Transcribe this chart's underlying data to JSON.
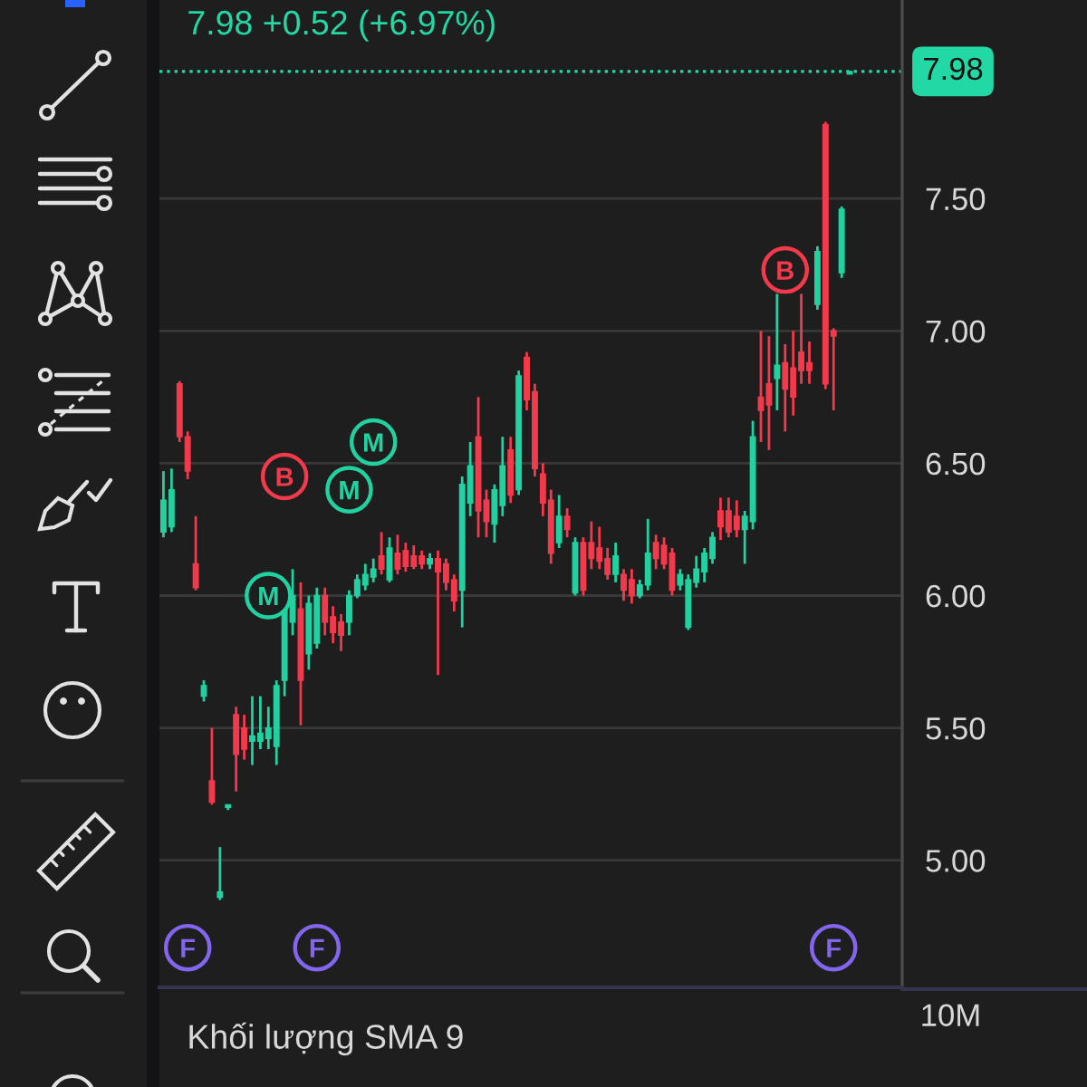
{
  "chart_data": [
    {
      "type": "candlestick",
      "categories": [
        null,
        null,
        null,
        null,
        null,
        null,
        null,
        null,
        null,
        null,
        null,
        null,
        null,
        null,
        null,
        null,
        null,
        null,
        null,
        null,
        null,
        null,
        null,
        null,
        null,
        null,
        null,
        null,
        null,
        null,
        null,
        null,
        null,
        null,
        null,
        null,
        null,
        null,
        null,
        null,
        null,
        null,
        null,
        null,
        null,
        null,
        null,
        null,
        null,
        null,
        null,
        null,
        null,
        null,
        null,
        null,
        null,
        null,
        null,
        null,
        null,
        null,
        null,
        null,
        null,
        null,
        null,
        null,
        null,
        null,
        null,
        null,
        null,
        null,
        null,
        null,
        null,
        null,
        null,
        null,
        null,
        null,
        null,
        null,
        null,
        null,
        null,
        null,
        null,
        null,
        null,
        null
      ],
      "ohlc": [
        [
          6.24,
          6.47,
          6.22,
          6.36
        ],
        [
          6.26,
          6.48,
          6.24,
          6.4
        ],
        [
          6.8,
          6.81,
          6.58,
          6.6
        ],
        [
          6.6,
          6.62,
          6.44,
          6.47
        ],
        [
          6.12,
          6.3,
          6.02,
          6.03
        ],
        [
          5.62,
          5.68,
          5.6,
          5.66
        ],
        [
          5.3,
          5.5,
          5.21,
          5.22
        ],
        [
          4.86,
          5.05,
          4.85,
          4.88
        ],
        [
          5.2,
          5.21,
          5.19,
          5.21
        ],
        [
          5.55,
          5.58,
          5.26,
          5.4
        ],
        [
          5.5,
          5.55,
          5.38,
          5.42
        ],
        [
          5.45,
          5.62,
          5.36,
          5.47
        ],
        [
          5.45,
          5.62,
          5.42,
          5.48
        ],
        [
          5.46,
          5.58,
          5.42,
          5.5
        ],
        [
          5.43,
          5.68,
          5.36,
          5.66
        ],
        [
          5.68,
          6.05,
          5.62,
          5.95
        ],
        [
          5.9,
          6.1,
          5.85,
          6.0
        ],
        [
          5.95,
          6.05,
          5.51,
          5.68
        ],
        [
          5.78,
          6.0,
          5.72,
          5.97
        ],
        [
          5.82,
          6.03,
          5.8,
          6.0
        ],
        [
          6.0,
          6.03,
          5.85,
          5.9
        ],
        [
          5.92,
          5.96,
          5.82,
          5.86
        ],
        [
          5.9,
          5.93,
          5.79,
          5.85
        ],
        [
          5.9,
          6.02,
          5.85,
          6.0
        ],
        [
          6.0,
          6.08,
          5.99,
          6.06
        ],
        [
          6.04,
          6.12,
          6.02,
          6.08
        ],
        [
          6.07,
          6.14,
          6.05,
          6.1
        ],
        [
          6.15,
          6.24,
          6.08,
          6.1
        ],
        [
          6.06,
          6.22,
          6.05,
          6.18
        ],
        [
          6.16,
          6.23,
          6.08,
          6.1
        ],
        [
          6.17,
          6.2,
          6.09,
          6.11
        ],
        [
          6.15,
          6.19,
          6.1,
          6.11
        ],
        [
          6.15,
          6.17,
          6.1,
          6.12
        ],
        [
          6.12,
          6.16,
          6.1,
          6.14
        ],
        [
          6.14,
          6.17,
          5.7,
          6.09
        ],
        [
          6.12,
          6.14,
          6.02,
          6.05
        ],
        [
          6.06,
          6.08,
          5.94,
          5.98
        ],
        [
          6.02,
          6.45,
          5.88,
          6.42
        ],
        [
          6.35,
          6.58,
          6.3,
          6.49
        ],
        [
          6.6,
          6.75,
          6.22,
          6.32
        ],
        [
          6.36,
          6.4,
          6.22,
          6.28
        ],
        [
          6.27,
          6.42,
          6.2,
          6.4
        ],
        [
          6.34,
          6.6,
          6.3,
          6.49
        ],
        [
          6.55,
          6.6,
          6.35,
          6.38
        ],
        [
          6.4,
          6.85,
          6.38,
          6.83
        ],
        [
          6.9,
          6.92,
          6.7,
          6.74
        ],
        [
          6.77,
          6.8,
          6.45,
          6.48
        ],
        [
          6.46,
          6.5,
          6.3,
          6.35
        ],
        [
          6.36,
          6.4,
          6.12,
          6.16
        ],
        [
          6.2,
          6.38,
          6.18,
          6.3
        ],
        [
          6.3,
          6.33,
          6.22,
          6.25
        ],
        [
          6.01,
          6.22,
          6.0,
          6.2
        ],
        [
          6.2,
          6.22,
          6.0,
          6.02
        ],
        [
          6.2,
          6.28,
          6.1,
          6.14
        ],
        [
          6.18,
          6.26,
          6.1,
          6.13
        ],
        [
          6.14,
          6.18,
          6.06,
          6.08
        ],
        [
          6.08,
          6.2,
          6.05,
          6.15
        ],
        [
          6.08,
          6.1,
          5.98,
          6.02
        ],
        [
          6.06,
          6.1,
          5.97,
          6.0
        ],
        [
          6.0,
          6.06,
          5.99,
          6.04
        ],
        [
          6.04,
          6.29,
          6.02,
          6.16
        ],
        [
          6.2,
          6.23,
          6.1,
          6.14
        ],
        [
          6.19,
          6.22,
          6.1,
          6.12
        ],
        [
          6.16,
          6.18,
          6.0,
          6.02
        ],
        [
          6.04,
          6.1,
          6.02,
          6.08
        ],
        [
          5.88,
          6.08,
          5.87,
          6.06
        ],
        [
          6.05,
          6.15,
          6.03,
          6.1
        ],
        [
          6.09,
          6.18,
          6.05,
          6.16
        ],
        [
          6.14,
          6.24,
          6.12,
          6.22
        ],
        [
          6.32,
          6.37,
          6.21,
          6.26
        ],
        [
          6.32,
          6.37,
          6.22,
          6.24
        ],
        [
          6.3,
          6.36,
          6.22,
          6.25
        ],
        [
          6.25,
          6.32,
          6.12,
          6.3
        ],
        [
          6.28,
          6.66,
          6.25,
          6.6
        ],
        [
          6.75,
          7.0,
          6.58,
          6.7
        ],
        [
          6.8,
          6.98,
          6.55,
          6.72
        ],
        [
          6.82,
          7.14,
          6.7,
          6.87
        ],
        [
          6.88,
          6.95,
          6.62,
          6.78
        ],
        [
          6.86,
          7.0,
          6.68,
          6.75
        ],
        [
          6.92,
          7.14,
          6.8,
          6.85
        ],
        [
          6.88,
          6.96,
          6.8,
          6.85
        ],
        [
          7.1,
          7.32,
          7.08,
          7.3
        ],
        [
          7.78,
          7.79,
          6.78,
          6.8
        ],
        [
          7.0,
          7.01,
          6.7,
          6.98
        ],
        [
          7.22,
          7.47,
          7.2,
          7.46
        ],
        [
          7.97,
          7.98,
          7.97,
          7.98
        ],
        null,
        null,
        null,
        null,
        null,
        null
      ],
      "colors": [
        "#22d1a0",
        "#22d1a0",
        "#f23a4c",
        "#f23a4c",
        "#f23a4c",
        "#22d1a0",
        "#f23a4c",
        "#22d1a0",
        "#22d1a0",
        "#f23a4c",
        "#f23a4c",
        "#22d1a0",
        "#22d1a0",
        "#22d1a0",
        "#22d1a0",
        "#22d1a0",
        "#22d1a0",
        "#f23a4c",
        "#22d1a0",
        "#22d1a0",
        "#f23a4c",
        "#f23a4c",
        "#f23a4c",
        "#22d1a0",
        "#22d1a0",
        "#22d1a0",
        "#22d1a0",
        "#f23a4c",
        "#22d1a0",
        "#f23a4c",
        "#f23a4c",
        "#f23a4c",
        "#f23a4c",
        "#22d1a0",
        "#f23a4c",
        "#f23a4c",
        "#f23a4c",
        "#22d1a0",
        "#22d1a0",
        "#f23a4c",
        "#f23a4c",
        "#22d1a0",
        "#22d1a0",
        "#f23a4c",
        "#22d1a0",
        "#f23a4c",
        "#f23a4c",
        "#f23a4c",
        "#f23a4c",
        "#22d1a0",
        "#f23a4c",
        "#22d1a0",
        "#f23a4c",
        "#f23a4c",
        "#f23a4c",
        "#f23a4c",
        "#22d1a0",
        "#f23a4c",
        "#f23a4c",
        "#22d1a0",
        "#22d1a0",
        "#f23a4c",
        "#f23a4c",
        "#f23a4c",
        "#22d1a0",
        "#22d1a0",
        "#22d1a0",
        "#22d1a0",
        "#22d1a0",
        "#f23a4c",
        "#f23a4c",
        "#f23a4c",
        "#22d1a0",
        "#22d1a0",
        "#f23a4c",
        "#f23a4c",
        "#22d1a0",
        "#f23a4c",
        "#f23a4c",
        "#f23a4c",
        "#f23a4c",
        "#22d1a0",
        "#f23a4c",
        "#f23a4c",
        "#22d1a0",
        "#22d1a0",
        null,
        null,
        null,
        null,
        null,
        null
      ],
      "series": [
        {
          "type": "scatter",
          "color": "#22d1a0",
          "values": [
            null,
            null,
            null,
            null,
            null,
            null,
            null,
            null,
            null,
            null,
            null,
            null,
            null,
            6.0,
            null,
            null,
            null,
            null,
            null,
            null,
            null,
            null,
            null,
            6.4,
            null,
            null,
            6.58,
            null,
            null,
            null,
            null,
            null,
            null,
            null,
            null,
            null,
            null,
            null,
            null,
            null,
            null,
            null,
            null,
            null,
            null,
            null,
            null,
            null,
            null,
            null,
            null,
            null,
            null,
            null,
            null,
            null,
            null,
            null,
            null,
            null,
            null,
            null,
            null,
            null,
            null,
            null,
            null,
            null,
            null,
            null,
            null,
            null,
            null,
            null,
            null,
            null,
            null,
            null,
            null,
            null,
            null,
            null,
            null,
            null,
            null,
            null,
            null,
            null,
            null,
            null,
            null,
            null
          ],
          "value_labels": [
            null,
            null,
            null,
            null,
            null,
            null,
            null,
            null,
            null,
            null,
            null,
            null,
            null,
            "M",
            null,
            null,
            null,
            null,
            null,
            null,
            null,
            null,
            null,
            "M",
            null,
            null,
            "M",
            null,
            null,
            null,
            null,
            null,
            null,
            null,
            null,
            null,
            null,
            null,
            null,
            null,
            null,
            null,
            null,
            null,
            null,
            null,
            null,
            null,
            null,
            null,
            null,
            null,
            null,
            null,
            null,
            null,
            null,
            null,
            null,
            null,
            null,
            null,
            null,
            null,
            null,
            null,
            null,
            null,
            null,
            null,
            null,
            null,
            null,
            null,
            null,
            null,
            null,
            null,
            null,
            null,
            null,
            null,
            null,
            null,
            null,
            null,
            null,
            null,
            null,
            null,
            null,
            null
          ]
        },
        {
          "type": "scatter",
          "color": "#f23a4c",
          "values": [
            null,
            null,
            null,
            null,
            null,
            null,
            null,
            null,
            null,
            null,
            null,
            null,
            null,
            null,
            null,
            6.45,
            null,
            null,
            null,
            null,
            null,
            null,
            null,
            null,
            null,
            null,
            null,
            null,
            null,
            null,
            null,
            null,
            null,
            null,
            null,
            null,
            null,
            null,
            null,
            null,
            null,
            null,
            null,
            null,
            null,
            null,
            null,
            null,
            null,
            null,
            null,
            null,
            null,
            null,
            null,
            null,
            null,
            null,
            null,
            null,
            null,
            null,
            null,
            null,
            null,
            null,
            null,
            null,
            null,
            null,
            null,
            null,
            null,
            null,
            null,
            null,
            null,
            7.23,
            null,
            null,
            null,
            null,
            null,
            null,
            null,
            null,
            null,
            null,
            null,
            null,
            null,
            null
          ],
          "value_labels": [
            null,
            null,
            null,
            null,
            null,
            null,
            null,
            null,
            null,
            null,
            null,
            null,
            null,
            null,
            null,
            "B",
            null,
            null,
            null,
            null,
            null,
            null,
            null,
            null,
            null,
            null,
            null,
            null,
            null,
            null,
            null,
            null,
            null,
            null,
            null,
            null,
            null,
            null,
            null,
            null,
            null,
            null,
            null,
            null,
            null,
            null,
            null,
            null,
            null,
            null,
            null,
            null,
            null,
            null,
            null,
            null,
            null,
            null,
            null,
            null,
            null,
            null,
            null,
            null,
            null,
            null,
            null,
            null,
            null,
            null,
            null,
            null,
            null,
            null,
            null,
            null,
            null,
            "B",
            null,
            null,
            null,
            null,
            null,
            null,
            null,
            null,
            null,
            null,
            null,
            null,
            null,
            null
          ]
        },
        {
          "type": "scatter",
          "color": "#8466ee",
          "values": [
            null,
            null,
            null,
            4.67,
            null,
            null,
            null,
            null,
            null,
            null,
            null,
            null,
            null,
            null,
            null,
            null,
            null,
            null,
            null,
            4.67,
            null,
            null,
            null,
            null,
            null,
            null,
            null,
            null,
            null,
            null,
            null,
            null,
            null,
            null,
            null,
            null,
            null,
            null,
            null,
            null,
            null,
            null,
            null,
            null,
            null,
            null,
            null,
            null,
            null,
            null,
            null,
            null,
            null,
            null,
            null,
            null,
            null,
            null,
            null,
            null,
            null,
            null,
            null,
            null,
            null,
            null,
            null,
            null,
            null,
            null,
            null,
            null,
            null,
            null,
            null,
            null,
            null,
            null,
            null,
            null,
            null,
            null,
            null,
            4.67,
            null,
            null,
            null,
            null,
            null,
            null,
            null,
            null
          ],
          "value_labels": [
            null,
            null,
            null,
            "F",
            null,
            null,
            null,
            null,
            null,
            null,
            null,
            null,
            null,
            null,
            null,
            null,
            null,
            null,
            null,
            "F",
            null,
            null,
            null,
            null,
            null,
            null,
            null,
            null,
            null,
            null,
            null,
            null,
            null,
            null,
            null,
            null,
            null,
            null,
            null,
            null,
            null,
            null,
            null,
            null,
            null,
            null,
            null,
            null,
            null,
            null,
            null,
            null,
            null,
            null,
            null,
            null,
            null,
            null,
            null,
            null,
            null,
            null,
            null,
            null,
            null,
            null,
            null,
            null,
            null,
            null,
            null,
            null,
            null,
            null,
            null,
            null,
            null,
            null,
            null,
            null,
            null,
            null,
            null,
            "F",
            null,
            null,
            null,
            null,
            null,
            null,
            null,
            null
          ]
        }
      ],
      "marker": "circle",
      "ylim": [
        4.52,
        8.25
      ],
      "yticks": [
        {
          "value": 5.0,
          "label": "5.00"
        },
        {
          "value": 5.5,
          "label": "5.50"
        },
        {
          "value": 6.0,
          "label": "6.00"
        },
        {
          "value": 6.5,
          "label": "6.50"
        },
        {
          "value": 7.0,
          "label": "7.00"
        },
        {
          "value": 7.5,
          "label": "7.50"
        }
      ],
      "tick_labels": "y",
      "grid": "y",
      "ref_lines": [
        {
          "axis": "y",
          "value": 7.98,
          "label": "7.98",
          "color": "#22d9a6",
          "line_style": "dotted"
        }
      ],
      "annotations": [
        "7.98 +0.52 (+6.97%)"
      ]
    },
    {
      "type": "other",
      "title": "Khối lượng SMA 9",
      "annotations": [
        "10M"
      ]
    }
  ]
}
